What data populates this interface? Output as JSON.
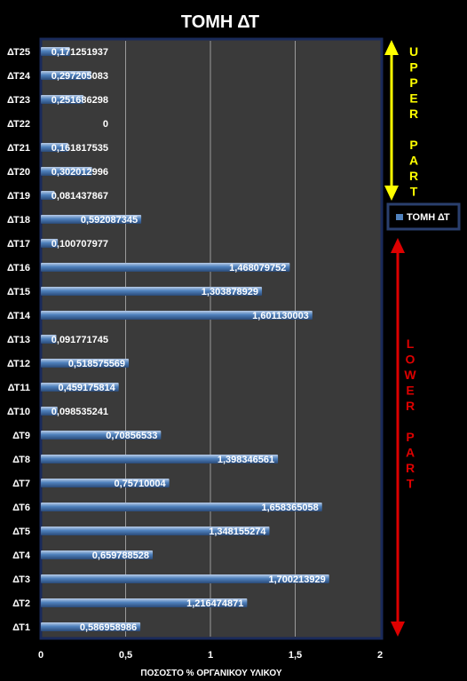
{
  "chart_data": {
    "type": "bar",
    "orientation": "horizontal",
    "title": "ΤΟΜΗ ΔΤ",
    "xlabel": "ΠΟΣΟΣΤΟ % ΟΡΓΑΝΙΚΟΥ ΥΛΙΚΟΥ",
    "ylabel": "",
    "xlim": [
      0,
      2
    ],
    "x_ticks": [
      "0",
      "0,5",
      "1",
      "1,5",
      "2"
    ],
    "grid": true,
    "legend_position": "right",
    "series": [
      {
        "name": "ΤΟΜΗ ΔΤ",
        "color": "#4f81bd",
        "categories": [
          "ΔΤ1",
          "ΔΤ2",
          "ΔΤ3",
          "ΔΤ4",
          "ΔΤ5",
          "ΔΤ6",
          "ΔΤ7",
          "ΔΤ8",
          "ΔΤ9",
          "ΔΤ10",
          "ΔΤ11",
          "ΔΤ12",
          "ΔΤ13",
          "ΔΤ14",
          "ΔΤ15",
          "ΔΤ16",
          "ΔΤ17",
          "ΔΤ18",
          "ΔΤ19",
          "ΔΤ20",
          "ΔΤ21",
          "ΔΤ22",
          "ΔΤ23",
          "ΔΤ24",
          "ΔΤ25"
        ],
        "values": [
          0.586958986,
          1.216474871,
          1.700213929,
          0.659788528,
          1.348155274,
          1.658365058,
          0.75710004,
          1.398346561,
          0.70856533,
          0.098535241,
          0.459175814,
          0.518575569,
          0.091771745,
          1.601130003,
          1.303878929,
          1.468079752,
          0.100707977,
          0.592087345,
          0.081437867,
          0.302012996,
          0.161817535,
          0,
          0.251686298,
          0.297205083,
          0.171251937
        ],
        "labels": [
          "0,586958986",
          "1,216474871",
          "1,700213929",
          "0,659788528",
          "1,348155274",
          "1,658365058",
          "0,75710004",
          "1,398346561",
          "0,70856533",
          "0,098535241",
          "0,459175814",
          "0,518575569",
          "0,091771745",
          "1,601130003",
          "1,303878929",
          "1,468079752",
          "0,100707977",
          "0,592087345",
          "0,081437867",
          "0,302012996",
          "0,161817535",
          "0",
          "0,251686298",
          "0,297205083",
          "0,171251937"
        ]
      }
    ],
    "annotations": {
      "upper": {
        "letters": [
          "U",
          "P",
          "P",
          "E",
          "R",
          "",
          "P",
          "A",
          "R",
          "T"
        ],
        "color": "#ffff00"
      },
      "lower": {
        "letters": [
          "L",
          "O",
          "W",
          "E",
          "R",
          "",
          "P",
          "A",
          "R",
          "T"
        ],
        "color": "#dd0000"
      }
    }
  }
}
